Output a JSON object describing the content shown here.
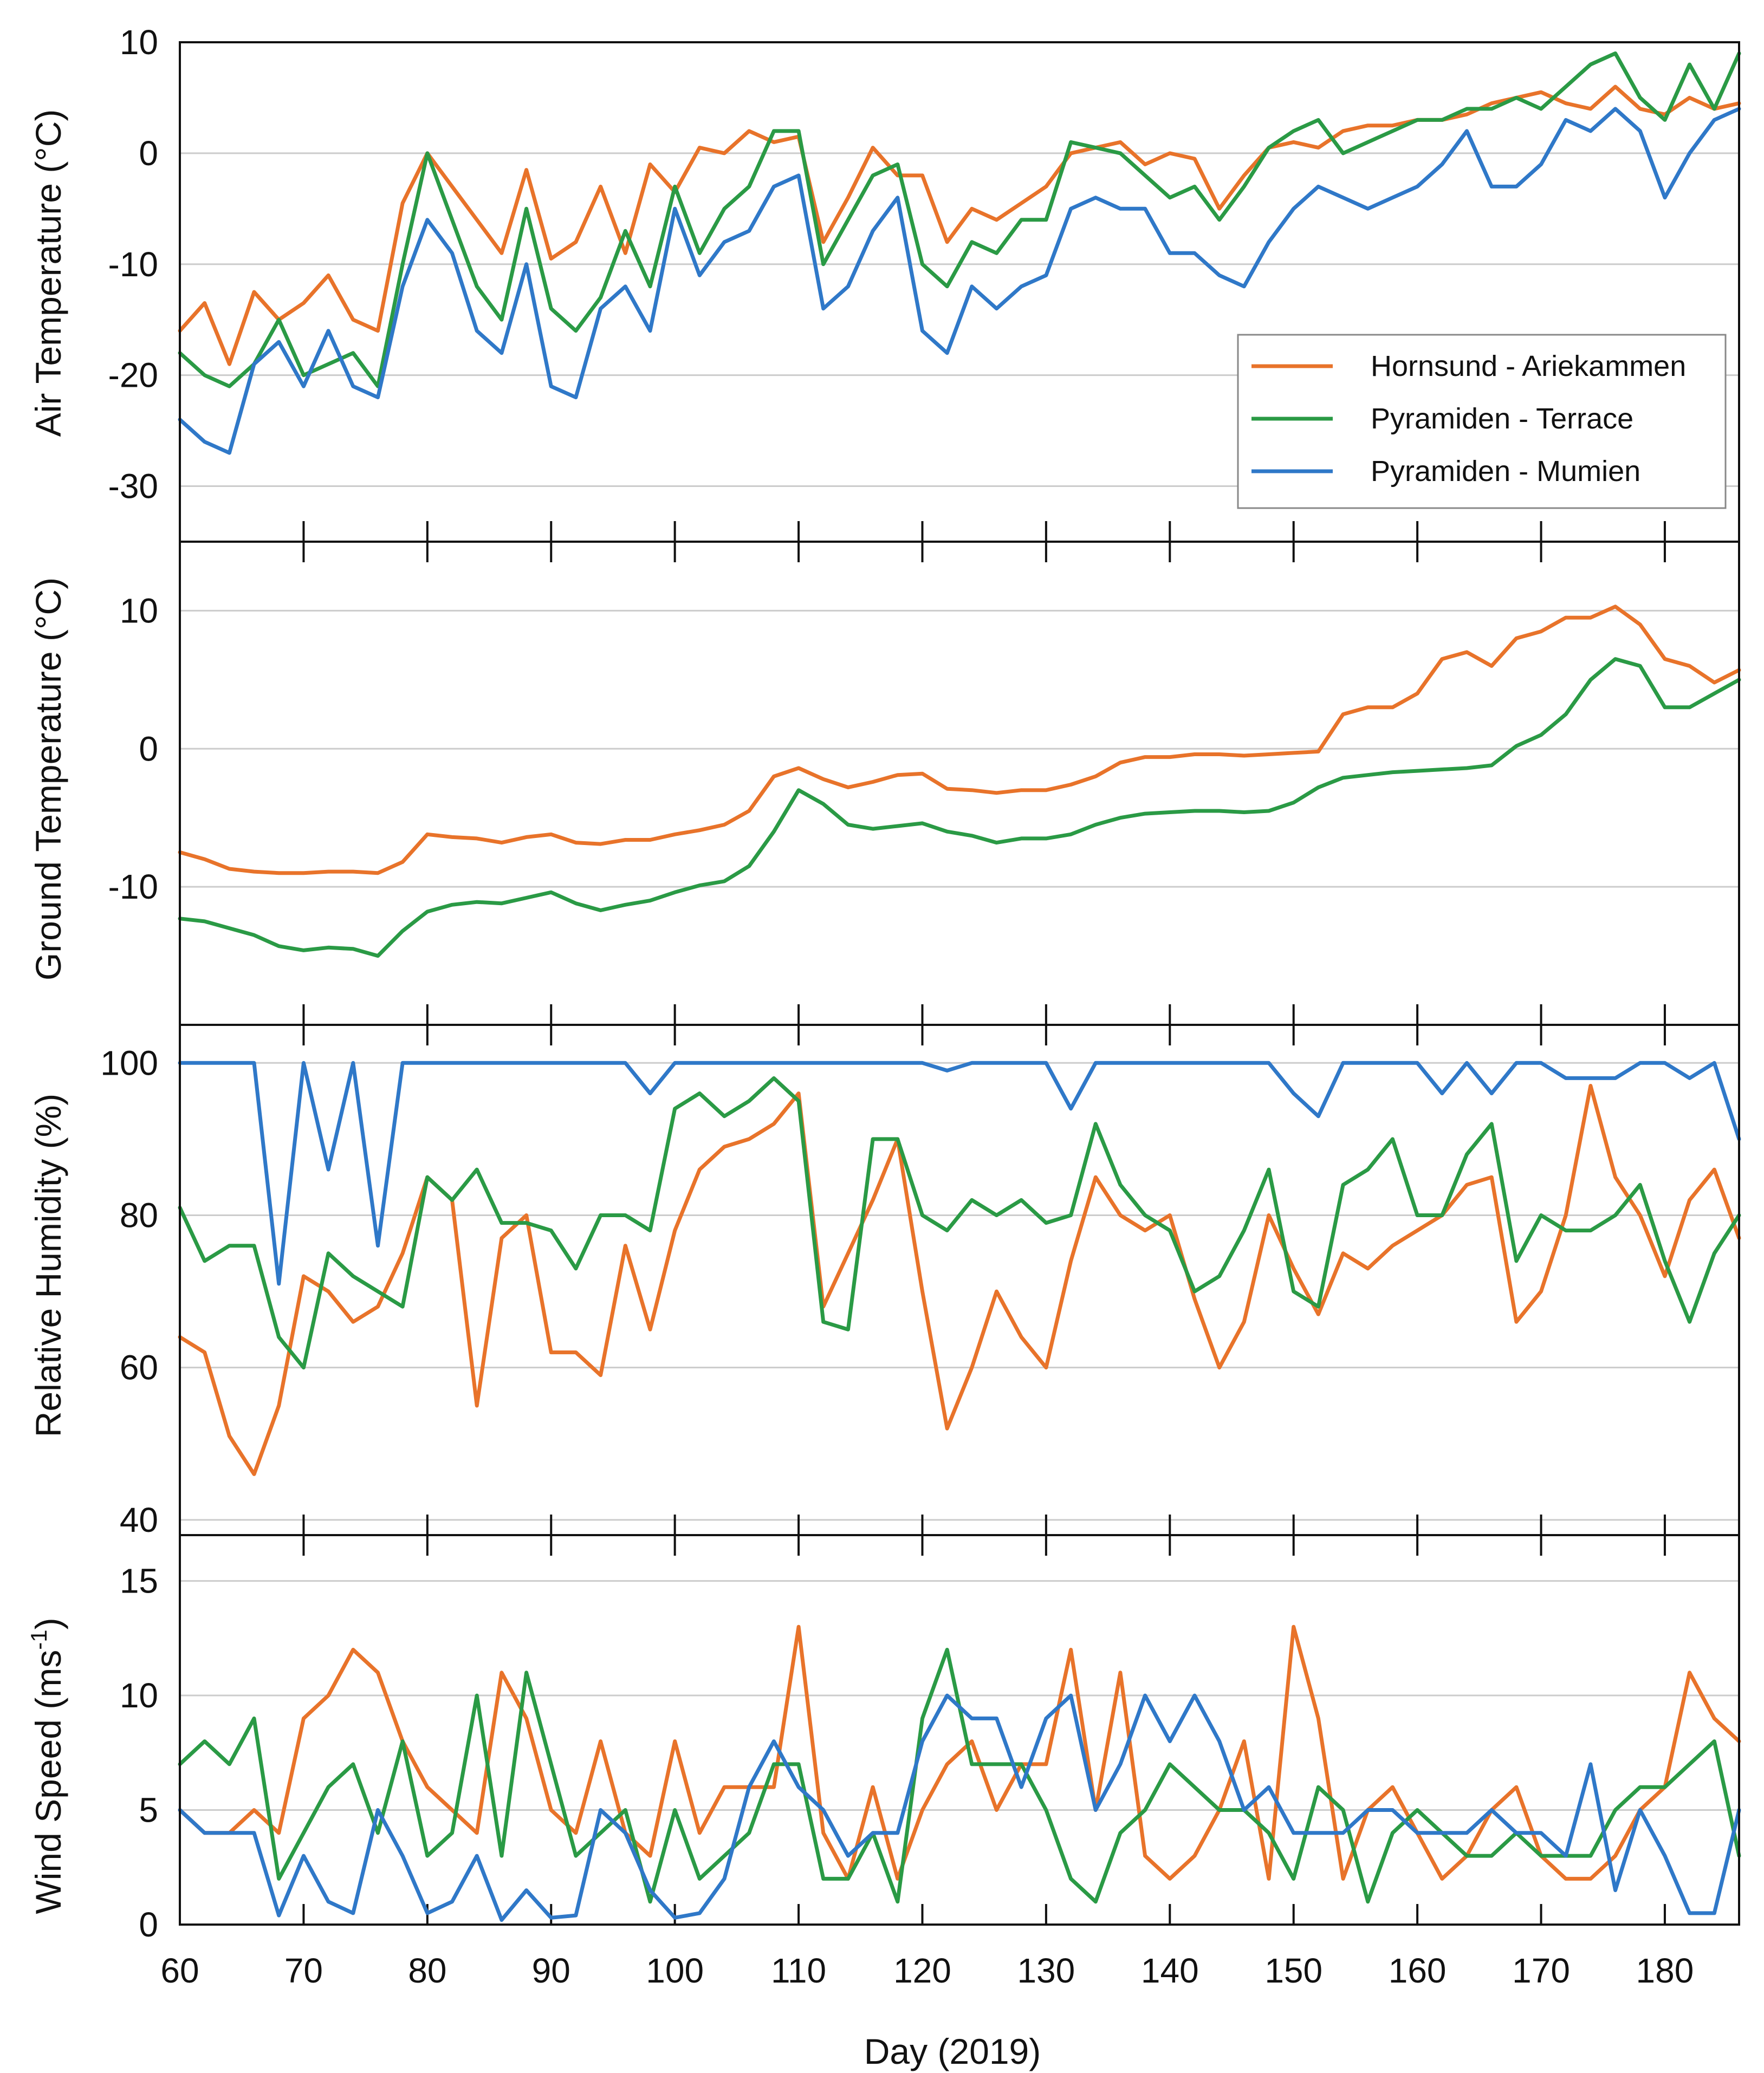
{
  "colors": {
    "hornsund": "#e8732a",
    "terrace": "#2a9a45",
    "mumien": "#2f78c8",
    "grid": "#cccccc",
    "frame": "#111111"
  },
  "chart_data": [
    {
      "type": "line",
      "panel": "air",
      "ylabel": "Air Temperature (°C)",
      "ylim": [
        -35,
        10
      ],
      "yticks": [
        10,
        0,
        -10,
        -20,
        -30
      ],
      "grid": true,
      "legend": {
        "placement": "lower-right",
        "entries": [
          "Hornsund - Ariekammen",
          "Pyramiden - Terrace",
          "Pyramiden - Mumien"
        ]
      },
      "x": [
        60,
        62,
        64,
        66,
        68,
        70,
        72,
        74,
        76,
        78,
        80,
        82,
        84,
        86,
        88,
        90,
        92,
        94,
        96,
        98,
        100,
        102,
        104,
        106,
        108,
        110,
        112,
        114,
        116,
        118,
        120,
        122,
        124,
        126,
        128,
        130,
        132,
        134,
        136,
        138,
        140,
        142,
        144,
        146,
        148,
        150,
        152,
        154,
        156,
        158,
        160,
        162,
        164,
        166,
        168,
        170,
        172,
        174,
        176,
        178,
        180,
        182,
        184,
        186
      ],
      "series": [
        {
          "name": "Hornsund - Ariekammen",
          "values": [
            -16,
            -13.5,
            -19,
            -12.5,
            -15,
            -13.5,
            -11,
            -15,
            -16,
            -4.5,
            0,
            -3,
            -6,
            -9,
            -1.5,
            -9.5,
            -8,
            -3,
            -9,
            -1,
            -3.5,
            0.5,
            0,
            2,
            1,
            1.5,
            -8,
            -4,
            0.5,
            -2,
            -2,
            -8,
            -5,
            -6,
            -4.5,
            -3,
            0,
            0.5,
            1,
            -1,
            0,
            -0.5,
            -5,
            -2,
            0.5,
            1,
            0.5,
            2,
            2.5,
            2.5,
            3,
            3,
            3.5,
            4.5,
            5,
            5.5,
            4.5,
            4,
            6,
            4,
            3.5,
            5,
            4,
            4.5
          ]
        },
        {
          "name": "Pyramiden - Terrace",
          "values": [
            -18,
            -20,
            -21,
            -19,
            -15,
            -20,
            -19,
            -18,
            -21,
            -10,
            0,
            -6,
            -12,
            -15,
            -5,
            -14,
            -16,
            -13,
            -7,
            -12,
            -3,
            -9,
            -5,
            -3,
            2,
            2,
            -10,
            -6,
            -2,
            -1,
            -10,
            -12,
            -8,
            -9,
            -6,
            -6,
            1,
            0.5,
            0,
            -2,
            -4,
            -3,
            -6,
            -3,
            0.5,
            2,
            3,
            0,
            1,
            2,
            3,
            3,
            4,
            4,
            5,
            4,
            6,
            8,
            9,
            5,
            3,
            8,
            4,
            9
          ]
        },
        {
          "name": "Pyramiden - Mumien",
          "values": [
            -24,
            -26,
            -27,
            -19,
            -17,
            -21,
            -16,
            -21,
            -22,
            -12,
            -6,
            -9,
            -16,
            -18,
            -10,
            -21,
            -22,
            -14,
            -12,
            -16,
            -5,
            -11,
            -8,
            -7,
            -3,
            -2,
            -14,
            -12,
            -7,
            -4,
            -16,
            -18,
            -12,
            -14,
            -12,
            -11,
            -5,
            -4,
            -5,
            -5,
            -9,
            -9,
            -11,
            -12,
            -8,
            -5,
            -3,
            -4,
            -5,
            -4,
            -3,
            -1,
            2,
            -3,
            -3,
            -1,
            3,
            2,
            4,
            2,
            -4,
            0,
            3,
            4
          ]
        }
      ]
    },
    {
      "type": "line",
      "panel": "ground",
      "ylabel": "Ground Temperature (°C)",
      "ylim": [
        -20,
        15
      ],
      "yticks": [
        10,
        0,
        -10
      ],
      "grid": true,
      "x": [
        60,
        62,
        64,
        66,
        68,
        70,
        72,
        74,
        76,
        78,
        80,
        82,
        84,
        86,
        88,
        90,
        92,
        94,
        96,
        98,
        100,
        102,
        104,
        106,
        108,
        110,
        112,
        114,
        116,
        118,
        120,
        122,
        124,
        126,
        128,
        130,
        132,
        134,
        136,
        138,
        140,
        142,
        144,
        146,
        148,
        150,
        152,
        154,
        156,
        158,
        160,
        162,
        164,
        166,
        168,
        170,
        172,
        174,
        176,
        178,
        180,
        182,
        184,
        186
      ],
      "series": [
        {
          "name": "Hornsund - Ariekammen",
          "values": [
            -7.5,
            -8,
            -8.7,
            -8.9,
            -9,
            -9,
            -8.9,
            -8.9,
            -9,
            -8.2,
            -6.2,
            -6.4,
            -6.5,
            -6.8,
            -6.4,
            -6.2,
            -6.8,
            -6.9,
            -6.6,
            -6.6,
            -6.2,
            -5.9,
            -5.5,
            -4.5,
            -2,
            -1.4,
            -2.2,
            -2.8,
            -2.4,
            -1.9,
            -1.8,
            -2.9,
            -3,
            -3.2,
            -3,
            -3,
            -2.6,
            -2,
            -1,
            -0.6,
            -0.6,
            -0.4,
            -0.4,
            -0.5,
            -0.4,
            -0.3,
            -0.2,
            2.5,
            3,
            3,
            4,
            6.5,
            7,
            6,
            8,
            8.5,
            9.5,
            9.5,
            10.3,
            9,
            6.5,
            6,
            4.8,
            5.7
          ]
        },
        {
          "name": "Pyramiden - Terrace",
          "values": [
            -12.3,
            -12.5,
            -13,
            -13.5,
            -14.3,
            -14.6,
            -14.4,
            -14.5,
            -15,
            -13.2,
            -11.8,
            -11.3,
            -11.1,
            -11.2,
            -10.8,
            -10.4,
            -11.2,
            -11.7,
            -11.3,
            -11,
            -10.4,
            -9.9,
            -9.6,
            -8.5,
            -6,
            -3,
            -4,
            -5.5,
            -5.8,
            -5.6,
            -5.4,
            -6,
            -6.3,
            -6.8,
            -6.5,
            -6.5,
            -6.2,
            -5.5,
            -5,
            -4.7,
            -4.6,
            -4.5,
            -4.5,
            -4.6,
            -4.5,
            -3.9,
            -2.8,
            -2.1,
            -1.9,
            -1.7,
            -1.6,
            -1.5,
            -1.4,
            -1.2,
            0.2,
            1,
            2.5,
            5,
            6.5,
            6,
            3,
            3,
            4,
            5
          ]
        }
      ]
    },
    {
      "type": "line",
      "panel": "humidity",
      "ylabel": "Relative Humidity (%)",
      "ylim": [
        38,
        105
      ],
      "yticks": [
        100,
        80,
        60,
        40
      ],
      "grid": true,
      "x": [
        60,
        62,
        64,
        66,
        68,
        70,
        72,
        74,
        76,
        78,
        80,
        82,
        84,
        86,
        88,
        90,
        92,
        94,
        96,
        98,
        100,
        102,
        104,
        106,
        108,
        110,
        112,
        114,
        116,
        118,
        120,
        122,
        124,
        126,
        128,
        130,
        132,
        134,
        136,
        138,
        140,
        142,
        144,
        146,
        148,
        150,
        152,
        154,
        156,
        158,
        160,
        162,
        164,
        166,
        168,
        170,
        172,
        174,
        176,
        178,
        180,
        182,
        184,
        186
      ],
      "series": [
        {
          "name": "Hornsund - Ariekammen",
          "values": [
            64,
            62,
            51,
            46,
            55,
            72,
            70,
            66,
            68,
            75,
            85,
            82,
            55,
            77,
            80,
            62,
            62,
            59,
            76,
            65,
            78,
            86,
            89,
            90,
            92,
            96,
            68,
            75,
            82,
            90,
            70,
            52,
            60,
            70,
            64,
            60,
            74,
            85,
            80,
            78,
            80,
            69,
            60,
            66,
            80,
            73,
            67,
            75,
            73,
            76,
            78,
            80,
            84,
            85,
            66,
            70,
            80,
            97,
            85,
            80,
            72,
            82,
            86,
            77
          ]
        },
        {
          "name": "Pyramiden - Terrace",
          "values": [
            81,
            74,
            76,
            76,
            64,
            60,
            75,
            72,
            70,
            68,
            85,
            82,
            86,
            79,
            79,
            78,
            73,
            80,
            80,
            78,
            94,
            96,
            93,
            95,
            98,
            95,
            66,
            65,
            90,
            90,
            80,
            78,
            82,
            80,
            82,
            79,
            80,
            92,
            84,
            80,
            78,
            70,
            72,
            78,
            86,
            70,
            68,
            84,
            86,
            90,
            80,
            80,
            88,
            92,
            74,
            80,
            78,
            78,
            80,
            84,
            74,
            66,
            75,
            80
          ]
        },
        {
          "name": "Pyramiden - Mumien",
          "values": [
            100,
            100,
            100,
            100,
            71,
            100,
            86,
            100,
            76,
            100,
            100,
            100,
            100,
            100,
            100,
            100,
            100,
            100,
            100,
            96,
            100,
            100,
            100,
            100,
            100,
            100,
            100,
            100,
            100,
            100,
            100,
            99,
            100,
            100,
            100,
            100,
            94,
            100,
            100,
            100,
            100,
            100,
            100,
            100,
            100,
            96,
            93,
            100,
            100,
            100,
            100,
            96,
            100,
            96,
            100,
            100,
            98,
            98,
            98,
            100,
            100,
            98,
            100,
            90
          ]
        }
      ]
    },
    {
      "type": "line",
      "panel": "wind",
      "ylabel": "Wind Speed (ms-1)",
      "ylim": [
        0,
        17
      ],
      "yticks": [
        15,
        10,
        5,
        0
      ],
      "grid": true,
      "xlabel": "Day (2019)",
      "xticks": [
        60,
        70,
        80,
        90,
        100,
        110,
        120,
        130,
        140,
        150,
        160,
        170,
        180
      ],
      "x": [
        60,
        62,
        64,
        66,
        68,
        70,
        72,
        74,
        76,
        78,
        80,
        82,
        84,
        86,
        88,
        90,
        92,
        94,
        96,
        98,
        100,
        102,
        104,
        106,
        108,
        110,
        112,
        114,
        116,
        118,
        120,
        122,
        124,
        126,
        128,
        130,
        132,
        134,
        136,
        138,
        140,
        142,
        144,
        146,
        148,
        150,
        152,
        154,
        156,
        158,
        160,
        162,
        164,
        166,
        168,
        170,
        172,
        174,
        176,
        178,
        180,
        182,
        184,
        186
      ],
      "series": [
        {
          "name": "Hornsund - Ariekammen",
          "values": [
            5,
            4,
            4,
            5,
            4,
            9,
            10,
            12,
            11,
            8,
            6,
            5,
            4,
            11,
            9,
            5,
            4,
            8,
            4,
            3,
            8,
            4,
            6,
            6,
            6,
            13,
            4,
            2,
            6,
            2,
            5,
            7,
            8,
            5,
            7,
            7,
            12,
            5,
            11,
            3,
            2,
            3,
            5,
            8,
            2,
            13,
            9,
            2,
            5,
            6,
            4,
            2,
            3,
            5,
            6,
            3,
            2,
            2,
            3,
            5,
            6,
            11,
            9,
            8
          ]
        },
        {
          "name": "Pyramiden - Terrace",
          "values": [
            7,
            8,
            7,
            9,
            2,
            4,
            6,
            7,
            4,
            8,
            3,
            4,
            10,
            3,
            11,
            7,
            3,
            4,
            5,
            1,
            5,
            2,
            3,
            4,
            7,
            7,
            2,
            2,
            4,
            1,
            9,
            12,
            7,
            7,
            7,
            5,
            2,
            1,
            4,
            5,
            7,
            6,
            5,
            5,
            4,
            2,
            6,
            5,
            1,
            4,
            5,
            4,
            3,
            3,
            4,
            3,
            3,
            3,
            5,
            6,
            6,
            7,
            8,
            3
          ]
        },
        {
          "name": "Pyramiden - Mumien",
          "values": [
            5,
            4,
            4,
            4,
            0.4,
            3,
            1,
            0.5,
            5,
            3,
            0.5,
            1,
            3,
            0.2,
            1.5,
            0.3,
            0.4,
            5,
            4,
            1.5,
            0.3,
            0.5,
            2,
            6,
            8,
            6,
            5,
            3,
            4,
            4,
            8,
            10,
            9,
            9,
            6,
            9,
            10,
            5,
            7,
            10,
            8,
            10,
            8,
            5,
            6,
            4,
            4,
            4,
            5,
            5,
            4,
            4,
            4,
            5,
            4,
            4,
            3,
            7,
            1.5,
            5,
            3,
            0.5,
            0.5,
            5
          ]
        }
      ]
    }
  ]
}
